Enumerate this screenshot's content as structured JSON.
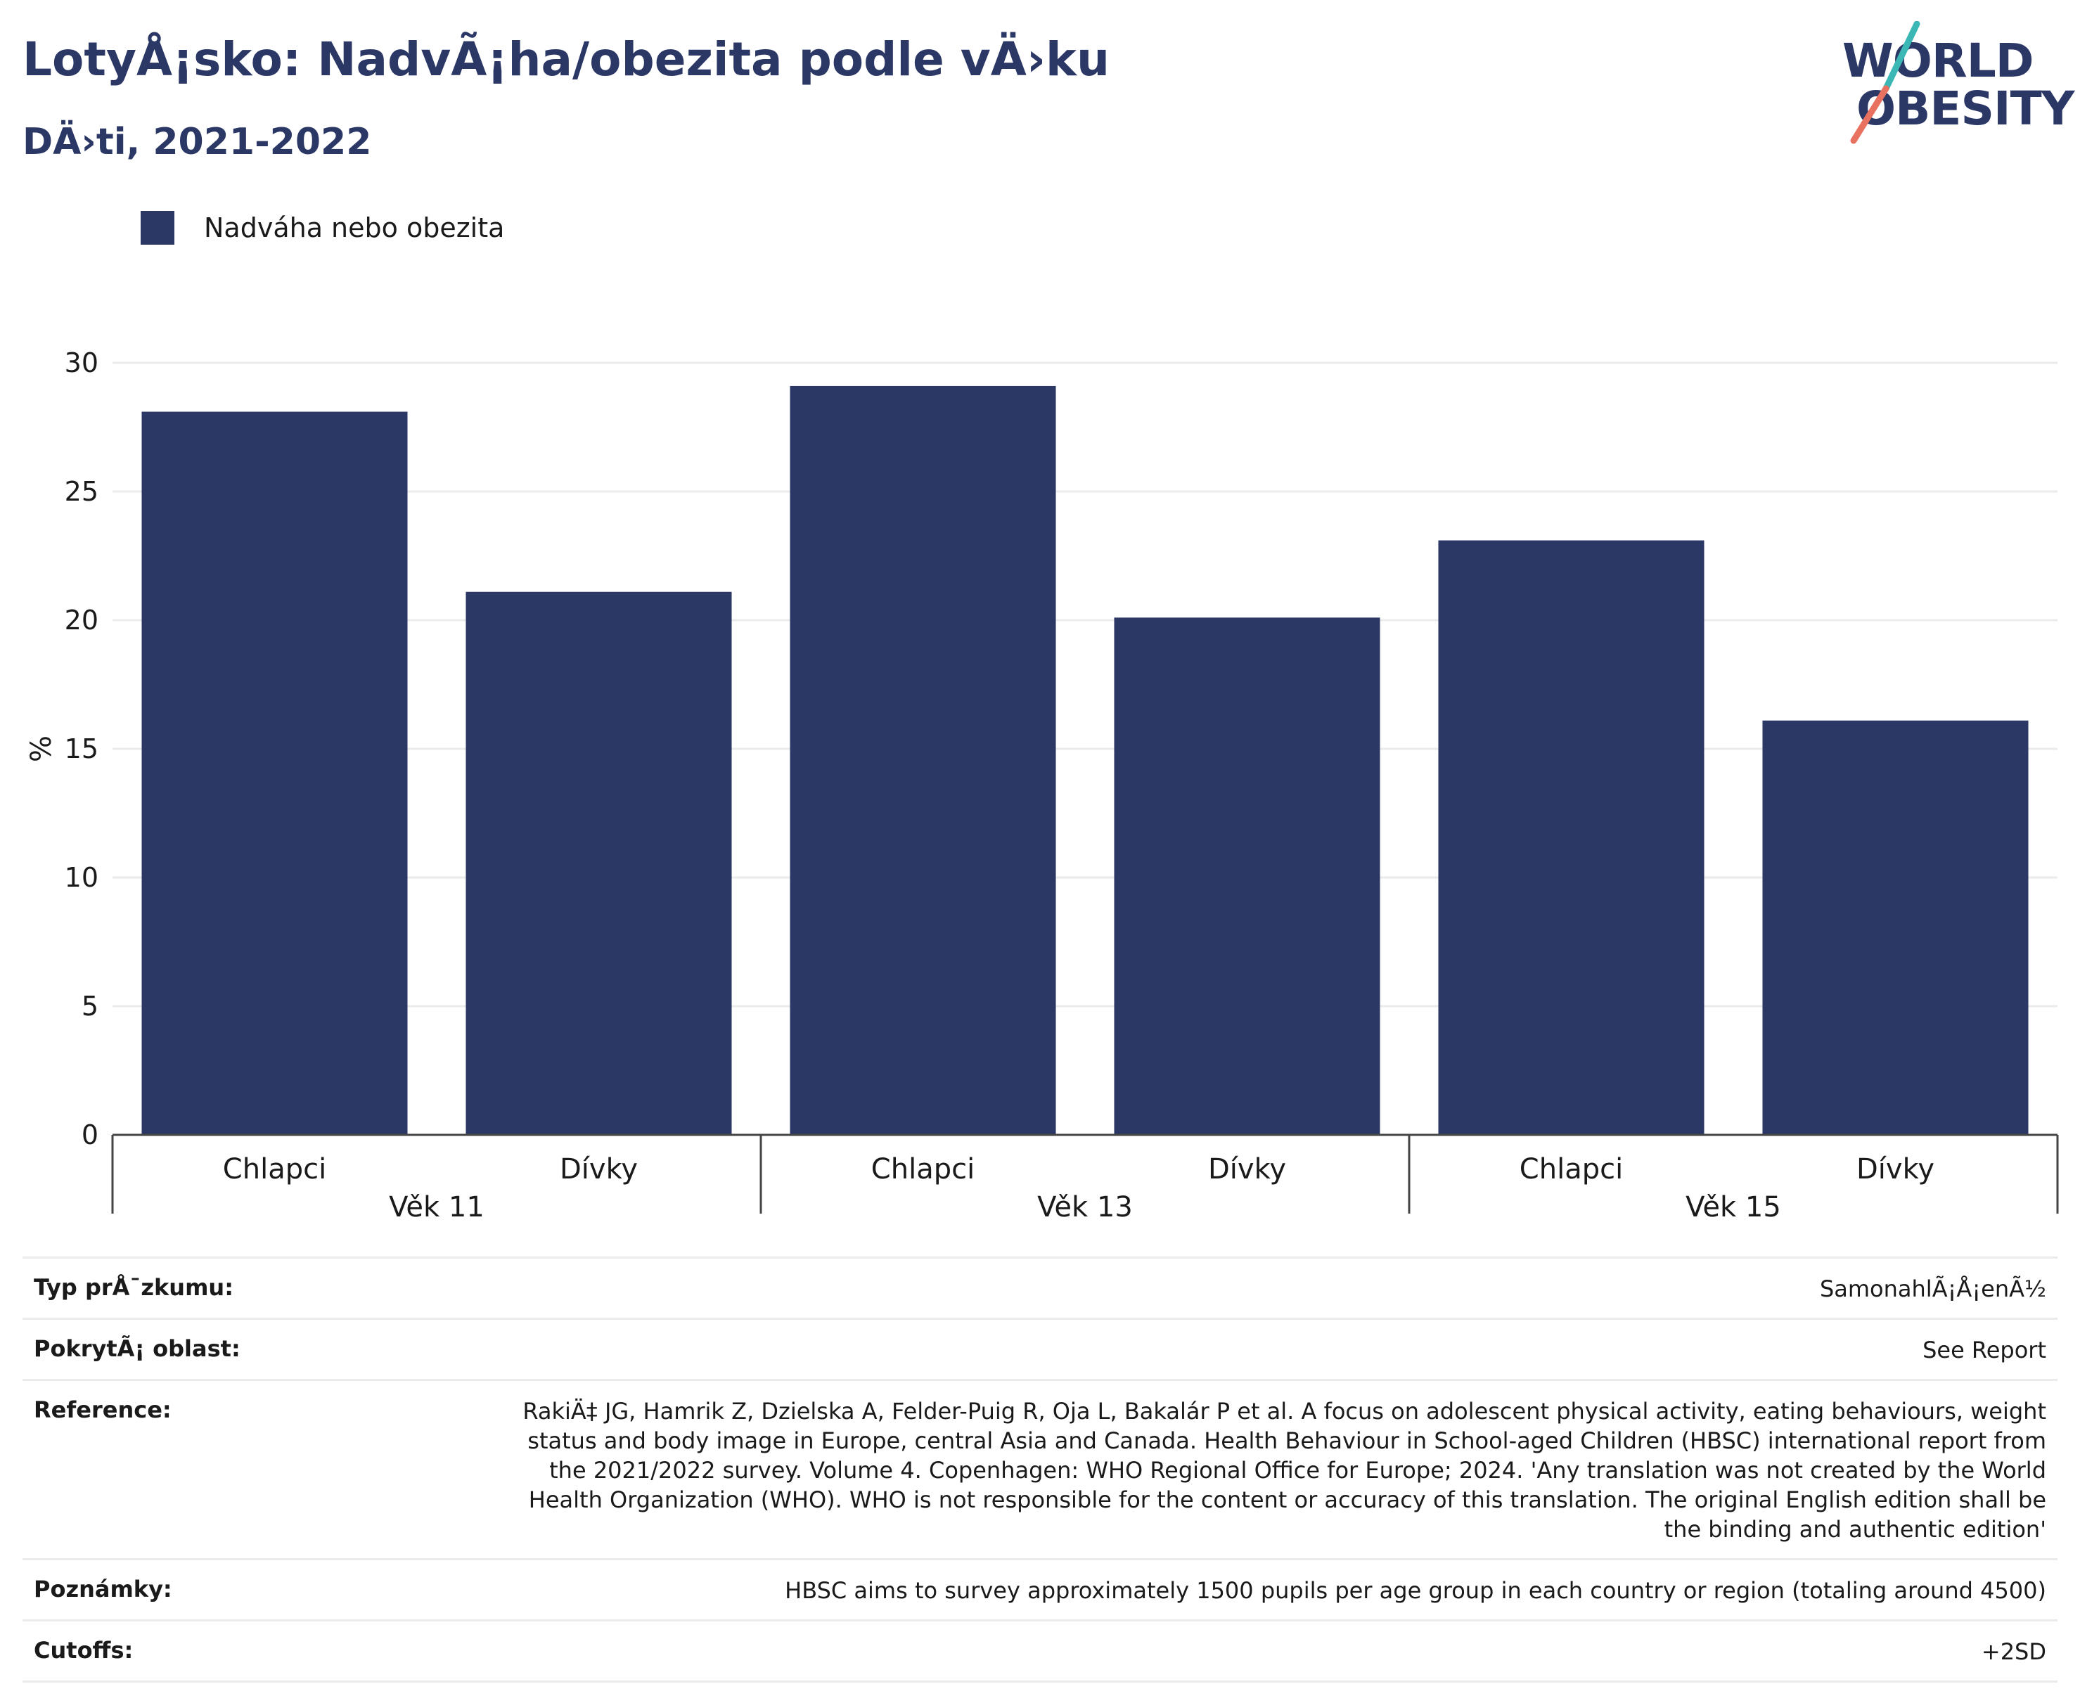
{
  "header": {
    "title": "LotyÅ¡sko: NadvÃ¡ha/obezita podle vÄ›ku",
    "subtitle": "DÄ›ti, 2021-2022"
  },
  "logo": {
    "line1": "WORLD",
    "line2": "OBESITY"
  },
  "colors": {
    "bar": "#2b3765",
    "title": "#2b3765",
    "gridline": "#ebebeb",
    "logo_teal": "#3bb7b5",
    "logo_red": "#e8715f"
  },
  "chart_data": {
    "type": "bar",
    "ylabel": "%",
    "ylim": [
      0,
      30
    ],
    "yticks": [
      0,
      5,
      10,
      15,
      20,
      25,
      30
    ],
    "grid": true,
    "legend_position": "top-left",
    "groups": [
      "Věk 11",
      "Věk 13",
      "Věk 15"
    ],
    "categories": [
      "Chlapci",
      "Dívky",
      "Chlapci",
      "Dívky",
      "Chlapci",
      "Dívky"
    ],
    "series": [
      {
        "name": "Nadváha nebo obezita",
        "values": [
          28.1,
          21.1,
          29.1,
          20.1,
          23.1,
          16.1
        ]
      }
    ]
  },
  "meta": [
    {
      "key": "Typ prÅ¯zkumu:",
      "value": "SamonahlÃ¡Å¡enÃ½"
    },
    {
      "key": "PokrytÃ¡ oblast:",
      "value": "See Report"
    },
    {
      "key": "Reference:",
      "value": "RakiÄ‡ JG, Hamrik Z, Dzielska A, Felder-Puig R, Oja L, Bakalár P et al. A focus on adolescent physical activity, eating behaviours, weight status and body image in Europe, central Asia and Canada. Health Behaviour in School-aged Children (HBSC) international report from the 2021/2022 survey. Volume 4. Copenhagen: WHO Regional Office for Europe; 2024. 'Any translation was not created by the World Health Organization (WHO). WHO is not responsible for the content or accuracy of this translation. The original English edition shall be the binding and authentic edition'"
    },
    {
      "key": "Poznámky:",
      "value": "HBSC aims to survey approximately 1500 pupils per age group in each country or region (totaling around 4500)"
    },
    {
      "key": "Cutoffs:",
      "value": "+2SD"
    }
  ]
}
